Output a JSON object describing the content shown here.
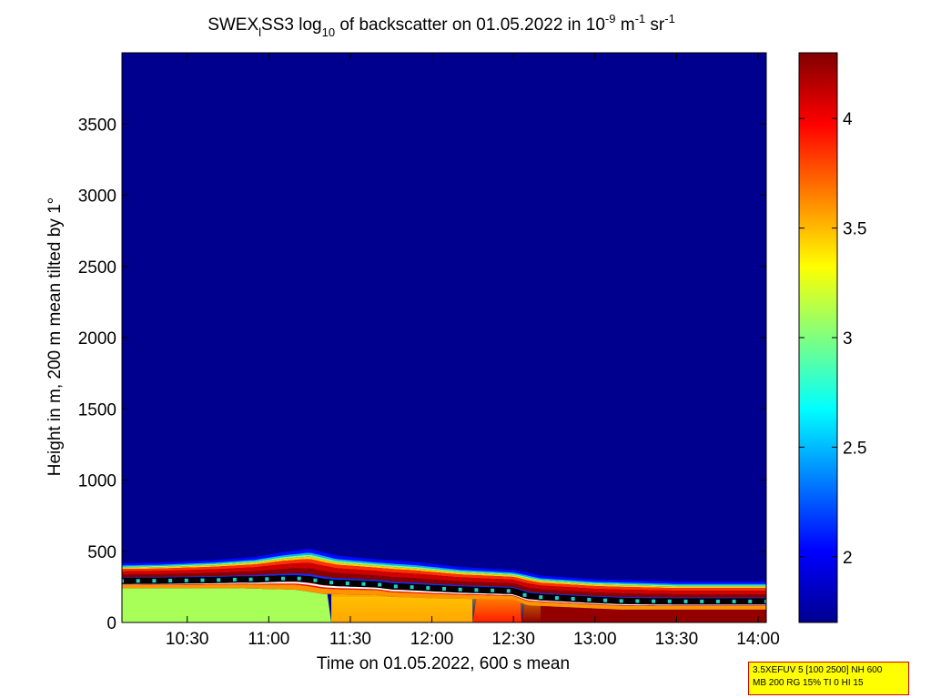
{
  "chart_data": {
    "type": "heatmap",
    "title": {
      "base": "SWEX",
      "sub1": "l",
      "mid": "SS3 log",
      "sub2": "10",
      "rest": " of backscatter on 01.05.2022 in 10",
      "sup1": "-9",
      "unit1": " m",
      "sup2": "-1",
      "unit2": " sr",
      "sup3": "-1"
    },
    "xlabel": "Time on 01.05.2022, 600 s mean",
    "ylabel": "Height in m, 200 m mean tilted by 1°",
    "x_tick_labels": [
      "10:30",
      "11:00",
      "11:30",
      "12:00",
      "12:30",
      "13:00",
      "13:30",
      "14:00"
    ],
    "x_tick_minutes": [
      630,
      660,
      690,
      720,
      750,
      780,
      810,
      840
    ],
    "xlim_minutes": [
      606,
      843
    ],
    "y_ticks": [
      0,
      500,
      1000,
      1500,
      2000,
      2500,
      3000,
      3500
    ],
    "ylim": [
      0,
      4000
    ],
    "colorbar": {
      "ticks": [
        2,
        2.5,
        3,
        3.5,
        4
      ],
      "range": [
        1.7,
        4.3
      ],
      "colormap": "jet"
    },
    "background_value": 1.85,
    "layer_top_m": [
      [
        606,
        400
      ],
      [
        620,
        405
      ],
      [
        640,
        420
      ],
      [
        655,
        440
      ],
      [
        665,
        470
      ],
      [
        675,
        490
      ],
      [
        685,
        445
      ],
      [
        700,
        420
      ],
      [
        715,
        400
      ],
      [
        730,
        370
      ],
      [
        740,
        360
      ],
      [
        750,
        350
      ],
      [
        755,
        330
      ],
      [
        760,
        310
      ],
      [
        780,
        285
      ],
      [
        810,
        270
      ],
      [
        843,
        270
      ]
    ],
    "layer_bottom_m": [
      [
        606,
        240
      ],
      [
        650,
        240
      ],
      [
        670,
        230
      ],
      [
        680,
        200
      ],
      [
        700,
        195
      ],
      [
        705,
        180
      ],
      [
        720,
        170
      ],
      [
        735,
        165
      ],
      [
        750,
        160
      ],
      [
        755,
        120
      ],
      [
        790,
        90
      ],
      [
        843,
        90
      ]
    ],
    "surface_fill": [
      {
        "from_minute": 606,
        "to_minute": 683,
        "value": 3.1
      },
      {
        "from_minute": 683,
        "to_minute": 735,
        "value": 3.55
      },
      {
        "from_minute": 735,
        "to_minute": 753,
        "value": 3.9
      },
      {
        "from_minute": 753,
        "to_minute": 843,
        "value": 4.25
      }
    ]
  },
  "info_box": {
    "line1": "3.5XEFUV 5 [100 2500] NH 600",
    "line2": "MB 200 RG 15% TI 0 HI 15"
  },
  "colors": {
    "background_field": "#00008f",
    "info_box_fill": "#ffff00",
    "info_box_border": "#d40000"
  }
}
